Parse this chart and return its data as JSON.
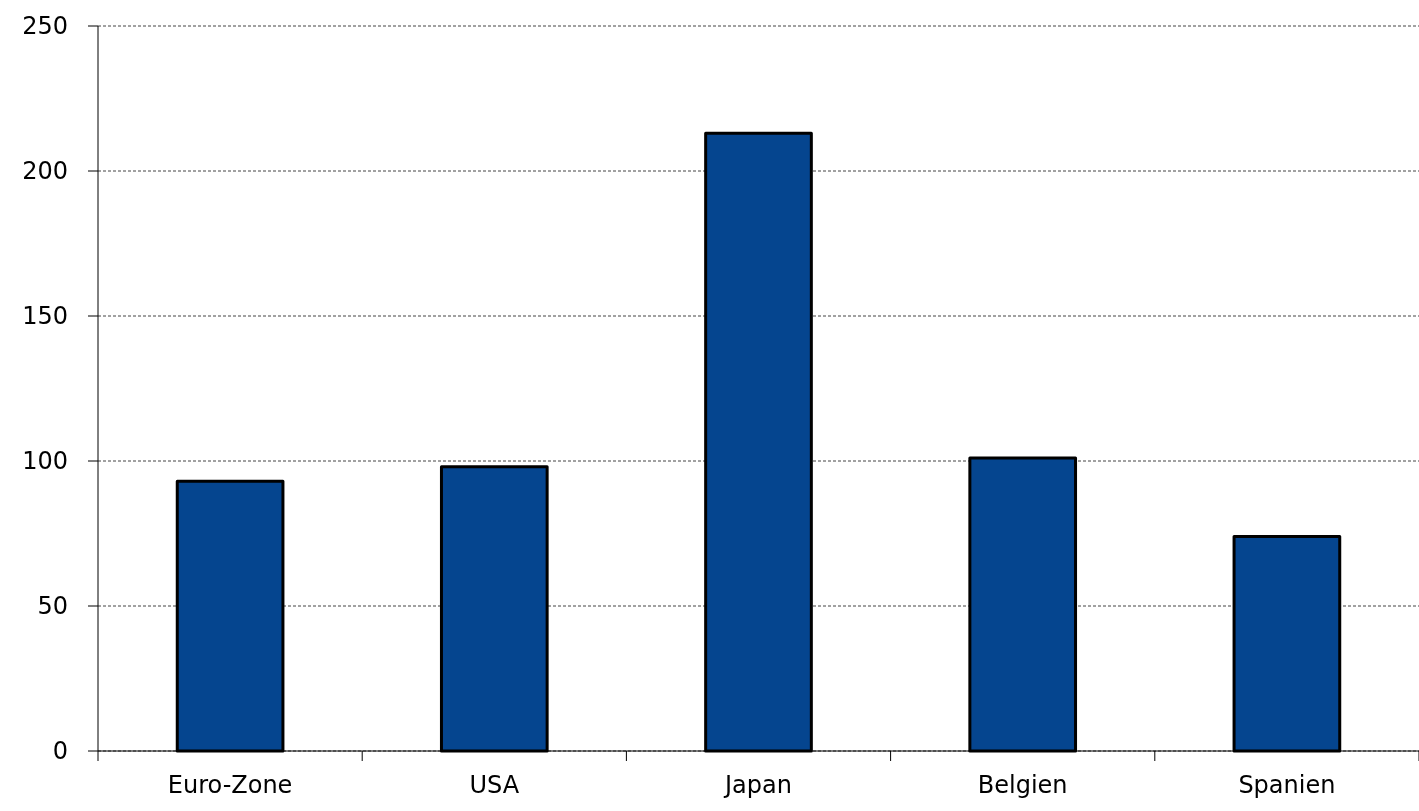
{
  "chart_data": {
    "type": "bar",
    "categories": [
      "Euro-Zone",
      "USA",
      "Japan",
      "Belgien",
      "Spanien"
    ],
    "values": [
      93,
      98,
      213,
      101,
      74
    ],
    "color": "#05458f",
    "ylim": [
      0,
      250
    ],
    "yticks": [
      0,
      50,
      100,
      150,
      200,
      250
    ],
    "grid": "y"
  }
}
